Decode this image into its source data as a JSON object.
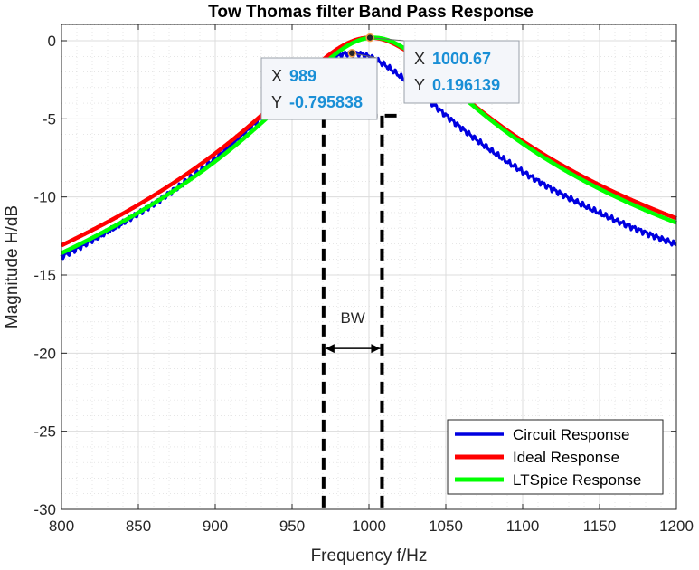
{
  "chart_data": {
    "type": "line",
    "title": "Tow Thomas filter Band Pass Response",
    "xlabel": "Frequency f/Hz",
    "ylabel": "Magnitude H/dB",
    "xlim": [
      800,
      1200
    ],
    "ylim": [
      -30,
      1
    ],
    "xticks": [
      800,
      850,
      900,
      950,
      1000,
      1050,
      1100,
      1150,
      1200
    ],
    "xtick_labels": [
      "800",
      "850",
      "900",
      "950",
      "1000",
      "1050",
      "1100",
      "1150",
      "1200"
    ],
    "yticks": [
      -30,
      -25,
      -20,
      -15,
      -10,
      -5,
      0
    ],
    "ytick_labels": [
      "-30",
      "-25",
      "-20",
      "-15",
      "-10",
      "-5",
      "0"
    ],
    "grid": true,
    "minor_grid": true,
    "legend_position": "bottom-right",
    "series": [
      {
        "name": "Circuit Response",
        "color": "#0000e0",
        "center": 989,
        "peak": -0.8,
        "q": 10.2
      },
      {
        "name": "Ideal Response",
        "color": "#ff0000",
        "center": 1000.67,
        "peak": 0.2,
        "q": 10
      },
      {
        "name": "LTSpice Response",
        "color": "#00ff00",
        "center": 1003,
        "peak": 0.2,
        "q": 10.5
      }
    ],
    "datatips": [
      {
        "x_label": "X",
        "x_value": "989",
        "y_label": "Y",
        "y_value": "-0.795838",
        "x": 989,
        "y": -0.795838
      },
      {
        "x_label": "X",
        "x_value": "1000.67",
        "y_label": "Y",
        "y_value": "0.196139",
        "x": 1000.67,
        "y": 0.196139
      }
    ],
    "annotations": {
      "bandwidth_label": "BW",
      "lower_cutoff": 970.5,
      "upper_cutoff": 1008.5,
      "cutoff_level": -4.8,
      "bw_arrow_y": -19.7
    }
  }
}
